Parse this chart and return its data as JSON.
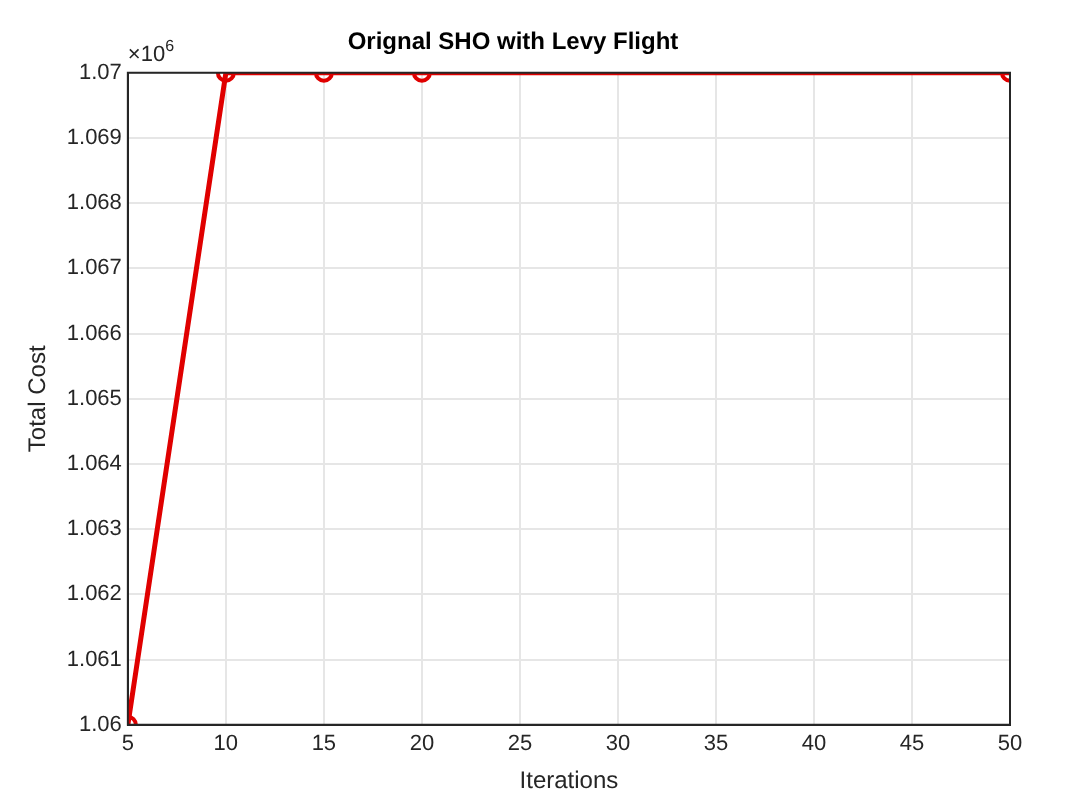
{
  "chart_data": {
    "type": "line",
    "title": "Orignal SHO with Levy Flight",
    "xlabel": "Iterations",
    "ylabel": "Total Cost",
    "annotations": [
      "×10$^{6}$"
    ],
    "x": [
      5,
      10,
      15,
      20,
      50
    ],
    "series": [
      {
        "color": "#e00000",
        "values": [
          1.06,
          1.07,
          1.07,
          1.07,
          1.07
        ]
      }
    ],
    "xlim": [
      5,
      50
    ],
    "xticks": [
      5,
      10,
      15,
      20,
      25,
      30,
      35,
      40,
      45,
      50
    ],
    "ylim": [
      1.06,
      1.07
    ],
    "yticks": [
      1.06,
      1.061,
      1.062,
      1.063,
      1.064,
      1.065,
      1.066,
      1.067,
      1.068,
      1.069,
      1.07
    ],
    "grid": true,
    "legend": false,
    "marker": "circle",
    "line_style": "solid"
  }
}
